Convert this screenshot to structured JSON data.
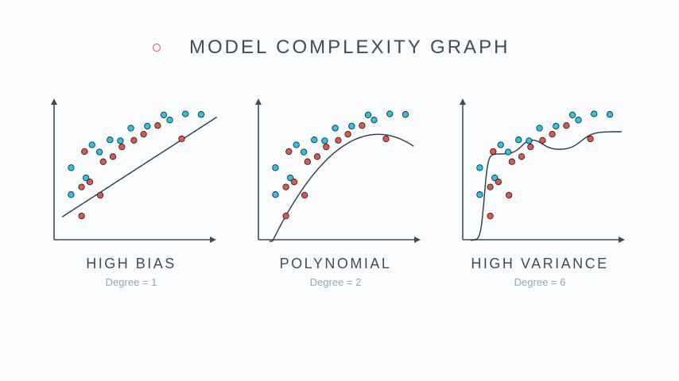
{
  "header": {
    "title": "MODEL COMPLEXITY GRAPH",
    "bullet_color": "#e0467a"
  },
  "colors": {
    "blue": "#29c4e6",
    "red": "#e05747",
    "axis": "#414c57",
    "curve": "#2f3a44"
  },
  "points": {
    "blue": [
      [
        1,
        3
      ],
      [
        1,
        8.3
      ],
      [
        3,
        6.3
      ],
      [
        3.8,
        12.8
      ],
      [
        4.8,
        11.4
      ],
      [
        6.2,
        13.8
      ],
      [
        7.6,
        13.6
      ],
      [
        9,
        16.1
      ],
      [
        11.2,
        16.5
      ],
      [
        13.4,
        18.7
      ],
      [
        14.2,
        17.7
      ],
      [
        16.3,
        18.9
      ],
      [
        18.4,
        18.8
      ]
    ],
    "red": [
      [
        2.4,
        -1.2
      ],
      [
        2.4,
        4.5
      ],
      [
        2.8,
        11.5
      ],
      [
        3.5,
        5.5
      ],
      [
        4.9,
        2.9
      ],
      [
        5.3,
        9.5
      ],
      [
        6.6,
        10.5
      ],
      [
        7.8,
        12.4
      ],
      [
        9.4,
        13.7
      ],
      [
        10.7,
        14.9
      ],
      [
        12.6,
        16.6
      ],
      [
        15.8,
        14.0
      ]
    ]
  },
  "panels": [
    {
      "label": "HIGH BIAS",
      "sub": "Degree = 1",
      "degree": 1
    },
    {
      "label": "POLYNOMIAL",
      "sub": "Degree = 2",
      "degree": 2
    },
    {
      "label": "HIGH VARIANCE",
      "sub": "Degree = 6",
      "degree": 6
    }
  ]
}
